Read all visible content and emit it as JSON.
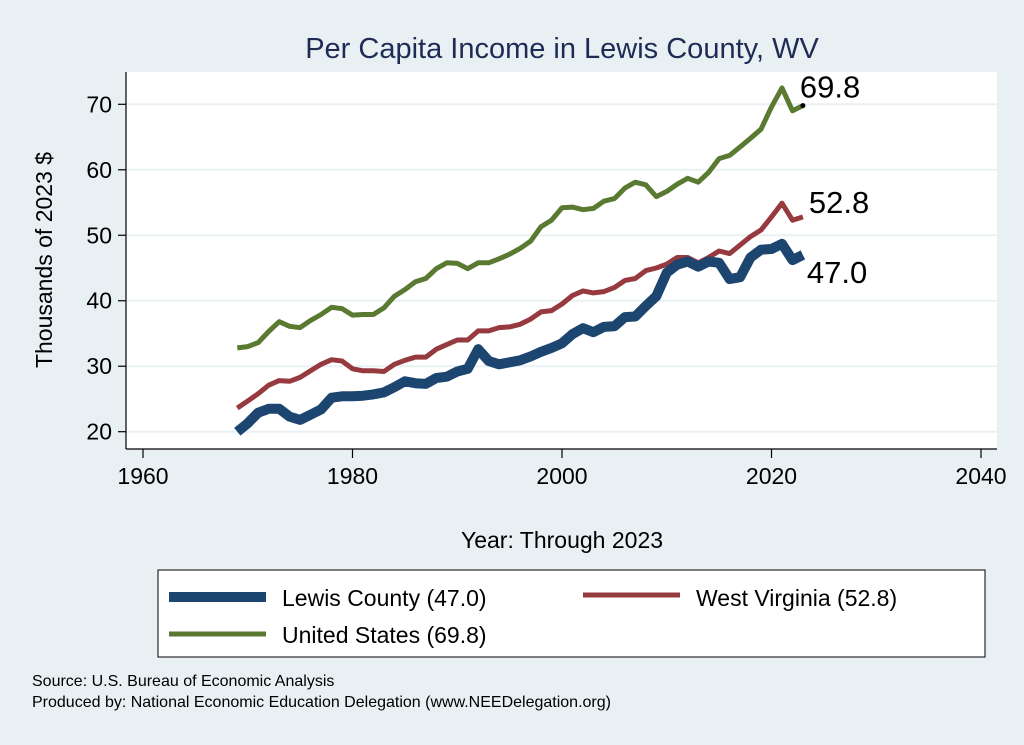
{
  "chart_data": {
    "type": "line",
    "title": "Per Capita Income in Lewis County, WV",
    "xlabel": "Year: Through 2023",
    "ylabel": "Thousands of 2023 $",
    "xlim": [
      1960,
      2040
    ],
    "ylim": [
      20,
      75
    ],
    "xticks": [
      "1960",
      "1980",
      "2000",
      "2020",
      "2040"
    ],
    "yticks": [
      "20",
      "30",
      "40",
      "50",
      "60",
      "70"
    ],
    "grid": "horizontal",
    "legend_position": "bottom",
    "x_start": 1969,
    "series": [
      {
        "name": "Lewis County",
        "legend": "Lewis County (47.0)",
        "end_label": "47.0",
        "color": "#1c4670",
        "values": [
          20.0,
          21.3,
          22.9,
          23.5,
          23.5,
          22.3,
          21.8,
          22.6,
          23.4,
          25.2,
          25.4,
          25.4,
          25.5,
          25.7,
          26.0,
          26.8,
          27.7,
          27.4,
          27.3,
          28.2,
          28.4,
          29.2,
          29.6,
          32.6,
          30.8,
          30.3,
          30.6,
          30.9,
          31.5,
          32.2,
          32.8,
          33.5,
          34.9,
          35.8,
          35.2,
          36.0,
          36.1,
          37.5,
          37.6,
          39.2,
          40.7,
          44.3,
          45.5,
          46.0,
          45.2,
          46.0,
          45.8,
          43.3,
          43.6,
          46.6,
          47.8,
          47.9,
          48.7,
          46.2,
          47.0
        ]
      },
      {
        "name": "West Virginia",
        "legend": "West Virginia (52.8)",
        "end_label": "52.8",
        "color": "#963a40",
        "values": [
          23.6,
          24.7,
          25.8,
          27.1,
          27.8,
          27.7,
          28.3,
          29.3,
          30.3,
          31.0,
          30.8,
          29.6,
          29.3,
          29.3,
          29.2,
          30.3,
          30.9,
          31.4,
          31.4,
          32.6,
          33.3,
          34.0,
          34.0,
          35.4,
          35.4,
          35.9,
          36.0,
          36.4,
          37.2,
          38.3,
          38.5,
          39.5,
          40.8,
          41.5,
          41.2,
          41.4,
          42.0,
          43.1,
          43.4,
          44.6,
          45.0,
          45.6,
          46.6,
          46.6,
          45.8,
          46.6,
          47.6,
          47.2,
          48.5,
          49.8,
          50.8,
          52.8,
          54.9,
          52.3,
          52.8
        ]
      },
      {
        "name": "United States",
        "legend": "United States (69.8)",
        "end_label": "69.8",
        "color": "#5a7a32",
        "values": [
          32.8,
          33.0,
          33.6,
          35.3,
          36.8,
          36.1,
          35.9,
          37.0,
          37.9,
          39.0,
          38.8,
          37.8,
          37.9,
          37.9,
          38.9,
          40.7,
          41.7,
          42.9,
          43.4,
          44.9,
          45.8,
          45.7,
          44.9,
          45.8,
          45.8,
          46.4,
          47.1,
          48.0,
          49.1,
          51.3,
          52.3,
          54.2,
          54.3,
          53.9,
          54.1,
          55.2,
          55.6,
          57.2,
          58.1,
          57.7,
          55.9,
          56.7,
          57.8,
          58.7,
          58.1,
          59.6,
          61.7,
          62.2,
          63.5,
          64.8,
          66.2,
          69.6,
          72.5,
          69.0,
          69.8
        ]
      }
    ]
  },
  "footer": {
    "source": "Source: U.S. Bureau of Economic Analysis",
    "produced": "Produced by: National Economic Education Delegation (www.NEEDelegation.org)"
  }
}
